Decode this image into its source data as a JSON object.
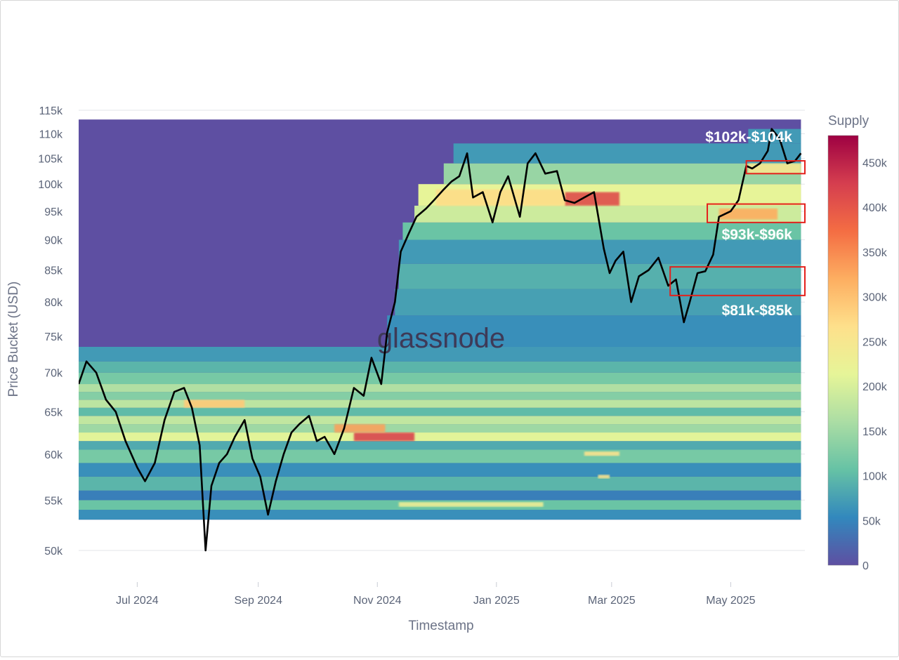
{
  "chart_data": {
    "type": "heatmap",
    "title": "",
    "xlabel": "Timestamp",
    "ylabel": "Price Bucket (USD)",
    "y_scale": "log",
    "ylim": [
      49000,
      115000
    ],
    "xlim": [
      "2024-06-01",
      "2025-06-08"
    ],
    "x_ticks": [
      {
        "date": "2024-07-01",
        "label": "Jul 2024"
      },
      {
        "date": "2024-09-01",
        "label": "Sep 2024"
      },
      {
        "date": "2024-11-01",
        "label": "Nov 2024"
      },
      {
        "date": "2025-01-01",
        "label": "Jan 2025"
      },
      {
        "date": "2025-03-01",
        "label": "Mar 2025"
      },
      {
        "date": "2025-05-01",
        "label": "May 2025"
      }
    ],
    "y_ticks": [
      {
        "value": 115000,
        "label": "115k"
      },
      {
        "value": 110000,
        "label": "110k"
      },
      {
        "value": 105000,
        "label": "105k"
      },
      {
        "value": 100000,
        "label": "100k"
      },
      {
        "value": 95000,
        "label": "95k"
      },
      {
        "value": 90000,
        "label": "90k"
      },
      {
        "value": 85000,
        "label": "85k"
      },
      {
        "value": 80000,
        "label": "80k"
      },
      {
        "value": 75000,
        "label": "75k"
      },
      {
        "value": 70000,
        "label": "70k"
      },
      {
        "value": 65000,
        "label": "65k"
      },
      {
        "value": 60000,
        "label": "60k"
      },
      {
        "value": 55000,
        "label": "55k"
      },
      {
        "value": 50000,
        "label": "50k"
      }
    ],
    "heatmap_extent": {
      "x": [
        "2024-06-01",
        "2025-06-06"
      ],
      "y": [
        53000,
        113000
      ]
    },
    "colorbar": {
      "title": "Supply",
      "range": [
        0,
        480000
      ],
      "ticks": [
        {
          "value": 0,
          "label": "0"
        },
        {
          "value": 50000,
          "label": "50k"
        },
        {
          "value": 100000,
          "label": "100k"
        },
        {
          "value": 150000,
          "label": "150k"
        },
        {
          "value": 200000,
          "label": "200k"
        },
        {
          "value": 250000,
          "label": "250k"
        },
        {
          "value": 300000,
          "label": "300k"
        },
        {
          "value": 350000,
          "label": "350k"
        },
        {
          "value": 400000,
          "label": "400k"
        },
        {
          "value": 450000,
          "label": "450k"
        }
      ],
      "colors": [
        "#5e4fa2",
        "#3288bd",
        "#66c2a5",
        "#abdda4",
        "#e6f598",
        "#fee08b",
        "#fdae61",
        "#f46d43",
        "#d53e4f",
        "#9e0142"
      ]
    },
    "heatmap_bands": [
      {
        "y": [
          53000,
          54000
        ],
        "x": [
          "2024-06-01",
          "2025-06-06"
        ],
        "supply": 60000
      },
      {
        "y": [
          54000,
          55000
        ],
        "x": [
          "2024-06-01",
          "2025-06-06"
        ],
        "supply": 110000
      },
      {
        "y": [
          55000,
          56000
        ],
        "x": [
          "2024-06-01",
          "2025-06-06"
        ],
        "supply": 45000
      },
      {
        "y": [
          56000,
          57500
        ],
        "x": [
          "2024-06-01",
          "2025-06-06"
        ],
        "supply": 95000
      },
      {
        "y": [
          57500,
          59000
        ],
        "x": [
          "2024-06-01",
          "2025-06-06"
        ],
        "supply": 60000
      },
      {
        "y": [
          59000,
          60500
        ],
        "x": [
          "2024-06-01",
          "2025-06-06"
        ],
        "supply": 120000
      },
      {
        "y": [
          60500,
          61500
        ],
        "x": [
          "2024-06-01",
          "2025-06-06"
        ],
        "supply": 85000
      },
      {
        "y": [
          61500,
          62500
        ],
        "x": [
          "2024-06-01",
          "2025-06-06"
        ],
        "supply": 210000
      },
      {
        "y": [
          62500,
          63500
        ],
        "x": [
          "2024-06-01",
          "2025-06-06"
        ],
        "supply": 150000
      },
      {
        "y": [
          63500,
          64500
        ],
        "x": [
          "2024-06-01",
          "2025-06-06"
        ],
        "supply": 180000
      },
      {
        "y": [
          64500,
          65500
        ],
        "x": [
          "2024-06-01",
          "2025-06-06"
        ],
        "supply": 100000
      },
      {
        "y": [
          65500,
          66500
        ],
        "x": [
          "2024-06-01",
          "2025-06-06"
        ],
        "supply": 175000
      },
      {
        "y": [
          66500,
          67500
        ],
        "x": [
          "2024-06-01",
          "2025-06-06"
        ],
        "supply": 130000
      },
      {
        "y": [
          67500,
          68500
        ],
        "x": [
          "2024-06-01",
          "2025-06-06"
        ],
        "supply": 165000
      },
      {
        "y": [
          68500,
          70000
        ],
        "x": [
          "2024-06-01",
          "2025-06-06"
        ],
        "supply": 120000
      },
      {
        "y": [
          70000,
          71500
        ],
        "x": [
          "2024-06-01",
          "2025-06-06"
        ],
        "supply": 95000
      },
      {
        "y": [
          71500,
          73500
        ],
        "x": [
          "2024-06-01",
          "2025-06-06"
        ],
        "supply": 70000
      },
      {
        "y": [
          73500,
          78000
        ],
        "x": [
          "2024-11-06",
          "2025-06-06"
        ],
        "supply": 60000
      },
      {
        "y": [
          78000,
          82000
        ],
        "x": [
          "2024-11-10",
          "2025-06-06"
        ],
        "supply": 75000
      },
      {
        "y": [
          82000,
          86000
        ],
        "x": [
          "2024-11-12",
          "2025-06-06"
        ],
        "supply": 90000
      },
      {
        "y": [
          86000,
          90000
        ],
        "x": [
          "2024-11-12",
          "2025-06-06"
        ],
        "supply": 70000
      },
      {
        "y": [
          90000,
          93000
        ],
        "x": [
          "2024-11-14",
          "2025-06-06"
        ],
        "supply": 110000
      },
      {
        "y": [
          93000,
          96000
        ],
        "x": [
          "2024-11-20",
          "2025-06-06"
        ],
        "supply": 190000
      },
      {
        "y": [
          96000,
          100000
        ],
        "x": [
          "2024-11-22",
          "2025-06-06"
        ],
        "supply": 215000
      },
      {
        "y": [
          100000,
          104000
        ],
        "x": [
          "2024-12-05",
          "2025-06-06"
        ],
        "supply": 145000
      },
      {
        "y": [
          104000,
          108000
        ],
        "x": [
          "2024-12-10",
          "2025-06-06"
        ],
        "supply": 70000
      },
      {
        "y": [
          108000,
          111000
        ],
        "x": [
          "2025-05-10",
          "2025-06-06"
        ],
        "supply": 70000
      }
    ],
    "heatmap_hotspots": [
      {
        "y": [
          61500,
          62500
        ],
        "x": [
          "2024-10-20",
          "2024-11-20"
        ],
        "supply": 420000
      },
      {
        "y": [
          62500,
          63500
        ],
        "x": [
          "2024-10-10",
          "2024-11-05"
        ],
        "supply": 330000
      },
      {
        "y": [
          65500,
          66500
        ],
        "x": [
          "2024-07-25",
          "2024-08-25"
        ],
        "supply": 290000
      },
      {
        "y": [
          96000,
          98500
        ],
        "x": [
          "2025-02-05",
          "2025-03-05"
        ],
        "supply": 410000
      },
      {
        "y": [
          96000,
          99000
        ],
        "x": [
          "2024-12-01",
          "2025-02-05"
        ],
        "supply": 270000
      },
      {
        "y": [
          93500,
          95500
        ],
        "x": [
          "2025-04-25",
          "2025-05-25"
        ],
        "supply": 320000
      },
      {
        "y": [
          102000,
          104000
        ],
        "x": [
          "2025-05-10",
          "2025-06-06"
        ],
        "supply": 250000
      },
      {
        "y": [
          54300,
          54800
        ],
        "x": [
          "2024-11-12",
          "2025-01-25"
        ],
        "supply": 230000
      },
      {
        "y": [
          59800,
          60300
        ],
        "x": [
          "2025-02-15",
          "2025-03-05"
        ],
        "supply": 260000
      },
      {
        "y": [
          57300,
          57700
        ],
        "x": [
          "2025-02-22",
          "2025-02-28"
        ],
        "supply": 260000
      }
    ],
    "series": [
      {
        "x": [
          "2024-06-01",
          "2024-06-05",
          "2024-06-10",
          "2024-06-15",
          "2024-06-20",
          "2024-06-25",
          "2024-07-01",
          "2024-07-05",
          "2024-07-10",
          "2024-07-15",
          "2024-07-20",
          "2024-07-25",
          "2024-07-29",
          "2024-08-02",
          "2024-08-05",
          "2024-08-08",
          "2024-08-12",
          "2024-08-16",
          "2024-08-20",
          "2024-08-25",
          "2024-08-29",
          "2024-09-02",
          "2024-09-06",
          "2024-09-10",
          "2024-09-14",
          "2024-09-18",
          "2024-09-22",
          "2024-09-27",
          "2024-10-01",
          "2024-10-05",
          "2024-10-10",
          "2024-10-15",
          "2024-10-20",
          "2024-10-25",
          "2024-10-29",
          "2024-11-03",
          "2024-11-06",
          "2024-11-10",
          "2024-11-13",
          "2024-11-17",
          "2024-11-21",
          "2024-11-26",
          "2024-11-30",
          "2024-12-05",
          "2024-12-09",
          "2024-12-13",
          "2024-12-17",
          "2024-12-20",
          "2024-12-25",
          "2024-12-30",
          "2025-01-03",
          "2025-01-07",
          "2025-01-13",
          "2025-01-17",
          "2025-01-21",
          "2025-01-26",
          "2025-02-01",
          "2025-02-05",
          "2025-02-10",
          "2025-02-15",
          "2025-02-20",
          "2025-02-25",
          "2025-02-28",
          "2025-03-03",
          "2025-03-07",
          "2025-03-11",
          "2025-03-15",
          "2025-03-20",
          "2025-03-25",
          "2025-03-30",
          "2025-04-03",
          "2025-04-07",
          "2025-04-10",
          "2025-04-14",
          "2025-04-18",
          "2025-04-22",
          "2025-04-25",
          "2025-05-01",
          "2025-05-05",
          "2025-05-09",
          "2025-05-12",
          "2025-05-16",
          "2025-05-20",
          "2025-05-22",
          "2025-05-26",
          "2025-05-30",
          "2025-06-03",
          "2025-06-06"
        ],
        "values": [
          68500,
          71500,
          70000,
          66500,
          65000,
          61500,
          58500,
          57000,
          59000,
          64000,
          67500,
          68000,
          65500,
          61000,
          50000,
          56500,
          59000,
          60000,
          62000,
          64000,
          59500,
          57500,
          53500,
          57000,
          60000,
          62500,
          63500,
          64500,
          61500,
          62000,
          60000,
          63000,
          68000,
          67000,
          72000,
          68500,
          75500,
          80000,
          88000,
          91000,
          94000,
          95500,
          97000,
          99000,
          100500,
          101500,
          106000,
          97500,
          98500,
          93000,
          98500,
          101500,
          94000,
          104000,
          106000,
          102000,
          102500,
          97000,
          96500,
          97500,
          98500,
          88500,
          84500,
          86500,
          88000,
          80000,
          84000,
          85000,
          87000,
          82500,
          83500,
          77000,
          80000,
          84500,
          84800,
          87500,
          94000,
          95000,
          97000,
          103500,
          103000,
          104000,
          106500,
          111000,
          109000,
          104000,
          104500,
          106000
        ]
      }
    ],
    "annotations": [
      {
        "text": "$102k-$104k",
        "box": {
          "x": [
            "2025-05-09",
            "2025-06-08"
          ],
          "y": [
            102000,
            104500
          ]
        }
      },
      {
        "text": "$93k-$96k",
        "box": {
          "x": [
            "2025-04-19",
            "2025-06-08"
          ],
          "y": [
            93000,
            96300
          ]
        }
      },
      {
        "text": "$81k-$85k",
        "box": {
          "x": [
            "2025-03-31",
            "2025-06-08"
          ],
          "y": [
            81000,
            85500
          ]
        }
      }
    ],
    "annotation_color": "#e4211c",
    "line_color": "#000000",
    "watermark": "glassnode",
    "grid": true,
    "legend": "right"
  }
}
